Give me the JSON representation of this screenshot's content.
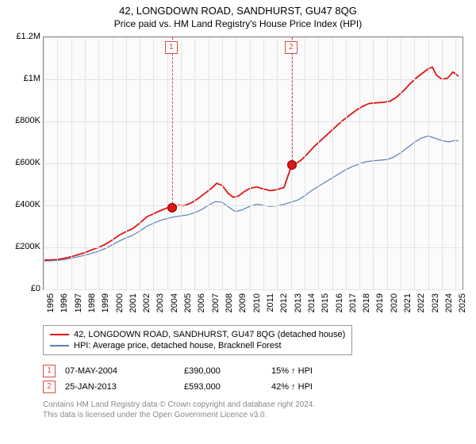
{
  "title": "42, LONGDOWN ROAD, SANDHURST, GU47 8QG",
  "subtitle": "Price paid vs. HM Land Registry's House Price Index (HPI)",
  "chart": {
    "type": "line",
    "background_color": "#fbfbfb",
    "grid_color": "#e3e3e3",
    "border_color": "#888888",
    "x": {
      "min": 1995,
      "max": 2025.5,
      "ticks": [
        1995,
        1996,
        1997,
        1998,
        1999,
        2000,
        2001,
        2002,
        2003,
        2004,
        2005,
        2006,
        2007,
        2008,
        2009,
        2010,
        2011,
        2012,
        2013,
        2014,
        2015,
        2016,
        2017,
        2018,
        2019,
        2020,
        2021,
        2022,
        2023,
        2024,
        2025
      ],
      "tick_labels": [
        "1995",
        "1996",
        "1997",
        "1998",
        "1999",
        "2000",
        "2001",
        "2002",
        "2003",
        "2004",
        "2005",
        "2006",
        "2007",
        "2008",
        "2009",
        "2010",
        "2011",
        "2012",
        "2013",
        "2014",
        "2015",
        "2016",
        "2017",
        "2018",
        "2019",
        "2020",
        "2021",
        "2022",
        "2023",
        "2024",
        "2025"
      ]
    },
    "y": {
      "min": 0,
      "max": 1200000,
      "ticks": [
        0,
        200000,
        400000,
        600000,
        800000,
        1000000,
        1200000
      ],
      "tick_labels": [
        "£0",
        "£200K",
        "£400K",
        "£600K",
        "£800K",
        "£1M",
        "£1.2M"
      ]
    },
    "series": [
      {
        "name": "42, LONGDOWN ROAD, SANDHURST, GU47 8QG (detached house)",
        "color": "#e01515",
        "line_width": 1.8,
        "points": [
          [
            1995.0,
            140000
          ],
          [
            1995.5,
            140000
          ],
          [
            1996.0,
            142000
          ],
          [
            1996.5,
            148000
          ],
          [
            1997.0,
            155000
          ],
          [
            1997.5,
            165000
          ],
          [
            1998.0,
            175000
          ],
          [
            1998.5,
            188000
          ],
          [
            1999.0,
            200000
          ],
          [
            1999.5,
            215000
          ],
          [
            2000.0,
            235000
          ],
          [
            2000.5,
            258000
          ],
          [
            2001.0,
            275000
          ],
          [
            2001.5,
            290000
          ],
          [
            2002.0,
            315000
          ],
          [
            2002.5,
            345000
          ],
          [
            2003.0,
            360000
          ],
          [
            2003.5,
            375000
          ],
          [
            2004.0,
            388000
          ],
          [
            2004.35,
            390000
          ],
          [
            2004.8,
            400000
          ],
          [
            2005.2,
            398000
          ],
          [
            2005.7,
            410000
          ],
          [
            2006.2,
            430000
          ],
          [
            2006.7,
            455000
          ],
          [
            2007.2,
            480000
          ],
          [
            2007.6,
            505000
          ],
          [
            2008.0,
            495000
          ],
          [
            2008.4,
            460000
          ],
          [
            2008.8,
            438000
          ],
          [
            2009.2,
            445000
          ],
          [
            2009.6,
            465000
          ],
          [
            2010.0,
            480000
          ],
          [
            2010.5,
            488000
          ],
          [
            2011.0,
            478000
          ],
          [
            2011.5,
            470000
          ],
          [
            2012.0,
            475000
          ],
          [
            2012.5,
            485000
          ],
          [
            2013.07,
            593000
          ],
          [
            2013.4,
            600000
          ],
          [
            2013.8,
            618000
          ],
          [
            2014.2,
            645000
          ],
          [
            2014.7,
            680000
          ],
          [
            2015.2,
            710000
          ],
          [
            2015.7,
            740000
          ],
          [
            2016.2,
            770000
          ],
          [
            2016.7,
            800000
          ],
          [
            2017.2,
            825000
          ],
          [
            2017.7,
            850000
          ],
          [
            2018.2,
            870000
          ],
          [
            2018.7,
            885000
          ],
          [
            2019.2,
            888000
          ],
          [
            2019.7,
            890000
          ],
          [
            2020.2,
            895000
          ],
          [
            2020.7,
            915000
          ],
          [
            2021.2,
            945000
          ],
          [
            2021.7,
            980000
          ],
          [
            2022.2,
            1010000
          ],
          [
            2022.7,
            1035000
          ],
          [
            2023.0,
            1050000
          ],
          [
            2023.3,
            1058000
          ],
          [
            2023.6,
            1020000
          ],
          [
            2024.0,
            1000000
          ],
          [
            2024.4,
            1005000
          ],
          [
            2024.8,
            1035000
          ],
          [
            2025.2,
            1015000
          ]
        ]
      },
      {
        "name": "HPI: Average price, detached house, Bracknell Forest",
        "color": "#5b7fb8",
        "line_width": 1.2,
        "points": [
          [
            1995.0,
            135000
          ],
          [
            1995.5,
            136000
          ],
          [
            1996.0,
            138000
          ],
          [
            1996.5,
            142000
          ],
          [
            1997.0,
            148000
          ],
          [
            1997.5,
            155000
          ],
          [
            1998.0,
            163000
          ],
          [
            1998.5,
            172000
          ],
          [
            1999.0,
            182000
          ],
          [
            1999.5,
            195000
          ],
          [
            2000.0,
            212000
          ],
          [
            2000.5,
            230000
          ],
          [
            2001.0,
            245000
          ],
          [
            2001.5,
            258000
          ],
          [
            2002.0,
            278000
          ],
          [
            2002.5,
            300000
          ],
          [
            2003.0,
            315000
          ],
          [
            2003.5,
            328000
          ],
          [
            2004.0,
            338000
          ],
          [
            2004.5,
            345000
          ],
          [
            2005.0,
            350000
          ],
          [
            2005.5,
            355000
          ],
          [
            2006.0,
            365000
          ],
          [
            2006.5,
            380000
          ],
          [
            2007.0,
            400000
          ],
          [
            2007.5,
            418000
          ],
          [
            2008.0,
            415000
          ],
          [
            2008.5,
            390000
          ],
          [
            2009.0,
            370000
          ],
          [
            2009.5,
            380000
          ],
          [
            2010.0,
            395000
          ],
          [
            2010.5,
            405000
          ],
          [
            2011.0,
            400000
          ],
          [
            2011.5,
            395000
          ],
          [
            2012.0,
            398000
          ],
          [
            2012.5,
            405000
          ],
          [
            2013.0,
            415000
          ],
          [
            2013.5,
            425000
          ],
          [
            2014.0,
            445000
          ],
          [
            2014.5,
            470000
          ],
          [
            2015.0,
            490000
          ],
          [
            2015.5,
            510000
          ],
          [
            2016.0,
            530000
          ],
          [
            2016.5,
            550000
          ],
          [
            2017.0,
            570000
          ],
          [
            2017.5,
            585000
          ],
          [
            2018.0,
            598000
          ],
          [
            2018.5,
            608000
          ],
          [
            2019.0,
            612000
          ],
          [
            2019.5,
            615000
          ],
          [
            2020.0,
            618000
          ],
          [
            2020.5,
            630000
          ],
          [
            2021.0,
            650000
          ],
          [
            2021.5,
            675000
          ],
          [
            2022.0,
            700000
          ],
          [
            2022.5,
            720000
          ],
          [
            2023.0,
            730000
          ],
          [
            2023.5,
            720000
          ],
          [
            2024.0,
            708000
          ],
          [
            2024.5,
            702000
          ],
          [
            2025.0,
            710000
          ],
          [
            2025.2,
            705000
          ]
        ]
      }
    ],
    "sale_markers": [
      {
        "label": "1",
        "x": 2004.35,
        "y": 390000
      },
      {
        "label": "2",
        "x": 2013.07,
        "y": 593000
      }
    ]
  },
  "legend": {
    "items": [
      {
        "color": "#e01515",
        "label": "42, LONGDOWN ROAD, SANDHURST, GU47 8QG (detached house)"
      },
      {
        "color": "#5b7fb8",
        "label": "HPI: Average price, detached house, Bracknell Forest"
      }
    ]
  },
  "sales": [
    {
      "marker": "1",
      "date": "07-MAY-2004",
      "price": "£390,000",
      "diff": "15% ↑ HPI"
    },
    {
      "marker": "2",
      "date": "25-JAN-2013",
      "price": "£593,000",
      "diff": "42% ↑ HPI"
    }
  ],
  "footer_line1": "Contains HM Land Registry data © Crown copyright and database right 2024.",
  "footer_line2": "This data is licensed under the Open Government Licence v3.0."
}
